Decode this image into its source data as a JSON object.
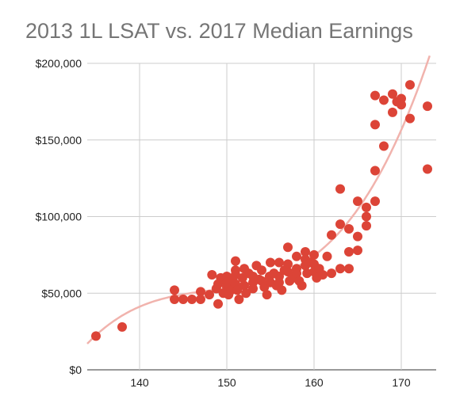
{
  "chart_data": {
    "type": "scatter",
    "title": "2013 1L LSAT vs. 2017 Median Earnings",
    "xlabel": "",
    "ylabel": "",
    "xlim": [
      134,
      174
    ],
    "ylim": [
      0,
      200000
    ],
    "x_ticks": [
      "140",
      "150",
      "160",
      "170"
    ],
    "y_ticks": [
      "$0",
      "$50,000",
      "$100,000",
      "$150,000",
      "$200,000"
    ],
    "x_tick_values": [
      140,
      150,
      160,
      170
    ],
    "y_tick_values": [
      0,
      50000,
      100000,
      150000,
      200000
    ],
    "grid": true,
    "legend": "none",
    "point_color": "#dc4437",
    "trendline": {
      "type": "polynomial",
      "color": "#f1b3ad"
    },
    "series": [
      {
        "points": [
          [
            135,
            22000
          ],
          [
            138,
            28000
          ],
          [
            144,
            52000
          ],
          [
            144,
            46000
          ],
          [
            145,
            46000
          ],
          [
            146,
            46000
          ],
          [
            147,
            51000
          ],
          [
            147,
            46000
          ],
          [
            148,
            49000
          ],
          [
            148.3,
            62000
          ],
          [
            148.8,
            53000
          ],
          [
            149,
            43000
          ],
          [
            149,
            56000
          ],
          [
            149.3,
            60000
          ],
          [
            149.6,
            50000
          ],
          [
            150,
            61000
          ],
          [
            150,
            57000
          ],
          [
            150,
            54000
          ],
          [
            150.2,
            49000
          ],
          [
            150.5,
            52000
          ],
          [
            150.7,
            58000
          ],
          [
            151,
            71000
          ],
          [
            151,
            65000
          ],
          [
            151,
            62000
          ],
          [
            151,
            56000
          ],
          [
            151.2,
            52000
          ],
          [
            151.4,
            46000
          ],
          [
            151.8,
            60000
          ],
          [
            152,
            66000
          ],
          [
            152,
            55000
          ],
          [
            152.2,
            50000
          ],
          [
            152.5,
            63000
          ],
          [
            153,
            61000
          ],
          [
            153,
            57000
          ],
          [
            153,
            53000
          ],
          [
            153.4,
            68000
          ],
          [
            153.7,
            59000
          ],
          [
            154,
            65000
          ],
          [
            154,
            58000
          ],
          [
            154.3,
            54000
          ],
          [
            154.6,
            49000
          ],
          [
            154.9,
            61000
          ],
          [
            155,
            70000
          ],
          [
            155,
            57000
          ],
          [
            155.4,
            63000
          ],
          [
            155.7,
            55000
          ],
          [
            156,
            70000
          ],
          [
            156,
            61000
          ],
          [
            156,
            57000
          ],
          [
            156.3,
            52000
          ],
          [
            156.6,
            65000
          ],
          [
            157,
            80000
          ],
          [
            157,
            69000
          ],
          [
            157,
            64000
          ],
          [
            157.2,
            58000
          ],
          [
            157.6,
            60000
          ],
          [
            158,
            74000
          ],
          [
            158,
            66000
          ],
          [
            158,
            63000
          ],
          [
            158.3,
            58000
          ],
          [
            158.6,
            55000
          ],
          [
            159,
            77000
          ],
          [
            159,
            72000
          ],
          [
            159,
            68000
          ],
          [
            159.2,
            63000
          ],
          [
            159.6,
            70000
          ],
          [
            160,
            75000
          ],
          [
            160,
            69000
          ],
          [
            160,
            64000
          ],
          [
            160.3,
            60000
          ],
          [
            160.6,
            66000
          ],
          [
            161,
            62000
          ],
          [
            161.5,
            74000
          ],
          [
            162,
            88000
          ],
          [
            162,
            63000
          ],
          [
            163,
            118000
          ],
          [
            163,
            95000
          ],
          [
            163,
            66000
          ],
          [
            164,
            77000
          ],
          [
            164,
            92000
          ],
          [
            164,
            66000
          ],
          [
            165,
            110000
          ],
          [
            165,
            87000
          ],
          [
            165,
            78000
          ],
          [
            166,
            106000
          ],
          [
            166,
            100000
          ],
          [
            166,
            94000
          ],
          [
            167,
            179000
          ],
          [
            167,
            160000
          ],
          [
            167,
            130000
          ],
          [
            167,
            110000
          ],
          [
            168,
            146000
          ],
          [
            168,
            176000
          ],
          [
            169,
            180000
          ],
          [
            169,
            168000
          ],
          [
            169.5,
            175000
          ],
          [
            170,
            177000
          ],
          [
            170,
            173000
          ],
          [
            171,
            186000
          ],
          [
            171,
            164000
          ],
          [
            173,
            172000
          ],
          [
            173,
            131000
          ]
        ]
      }
    ]
  }
}
